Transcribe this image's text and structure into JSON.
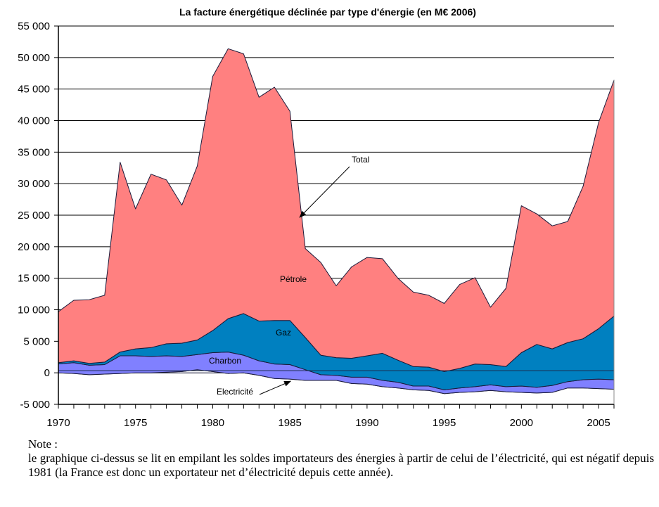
{
  "chart_data": {
    "type": "area",
    "stacked": true,
    "title": "La facture énergétique déclinée par type d'énergie (en M€ 2006)",
    "xlabel": "",
    "ylabel": "",
    "ylim": [
      -5000,
      55000
    ],
    "xlim": [
      1970,
      2006
    ],
    "yticks": [
      -5000,
      0,
      5000,
      10000,
      15000,
      20000,
      25000,
      30000,
      35000,
      40000,
      45000,
      50000,
      55000
    ],
    "ytick_labels": [
      "-5 000",
      "0",
      "5 000",
      "10 000",
      "15 000",
      "20 000",
      "25 000",
      "30 000",
      "35 000",
      "40 000",
      "45 000",
      "50 000",
      "55 000"
    ],
    "xtick_labels": [
      "1970",
      "1975",
      "1980",
      "1985",
      "1990",
      "1995",
      "2000",
      "2005"
    ],
    "xtick_label_years": [
      1970,
      1975,
      1980,
      1985,
      1990,
      1995,
      2000,
      2005
    ],
    "grid": "horizontal",
    "legend": "none (inline labels)",
    "x": [
      1970,
      1971,
      1972,
      1973,
      1974,
      1975,
      1976,
      1977,
      1978,
      1979,
      1980,
      1981,
      1982,
      1983,
      1984,
      1985,
      1986,
      1987,
      1988,
      1989,
      1990,
      1991,
      1992,
      1993,
      1994,
      1995,
      1996,
      1997,
      1998,
      1999,
      2000,
      2001,
      2002,
      2003,
      2004,
      2005,
      2006
    ],
    "cumulative_boundaries_note": "Each series is given as its stacked top boundary (cumulative), stacking starts from Electricité.",
    "series": [
      {
        "name": "Electricité",
        "color": "#ffffff",
        "cumulative_top": [
          0,
          -100,
          -300,
          -200,
          -100,
          0,
          0,
          100,
          200,
          500,
          200,
          -100,
          0,
          -400,
          -900,
          -1000,
          -1200,
          -1200,
          -1200,
          -1700,
          -1800,
          -2200,
          -2400,
          -2700,
          -2800,
          -3300,
          -3100,
          -3000,
          -2800,
          -3000,
          -3100,
          -3200,
          -3100,
          -2400,
          -2400,
          -2500,
          -2600
        ]
      },
      {
        "name": "Charbon",
        "color": "#8080ff",
        "cumulative_top": [
          1400,
          1600,
          1200,
          1300,
          2700,
          2700,
          2600,
          2700,
          2600,
          2900,
          3200,
          3300,
          2800,
          1900,
          1400,
          1300,
          500,
          -300,
          -400,
          -700,
          -700,
          -1200,
          -1500,
          -2100,
          -2100,
          -2700,
          -2400,
          -2200,
          -1900,
          -2200,
          -2100,
          -2300,
          -2000,
          -1400,
          -1100,
          -1000,
          -1100
        ]
      },
      {
        "name": "Gaz",
        "color": "#0080c0",
        "cumulative_top": [
          1600,
          1900,
          1500,
          1700,
          3300,
          3800,
          4000,
          4600,
          4700,
          5200,
          6700,
          8600,
          9400,
          8200,
          8300,
          8300,
          5600,
          2800,
          2400,
          2300,
          2700,
          3100,
          2000,
          1000,
          900,
          200,
          700,
          1400,
          1300,
          1000,
          3200,
          4500,
          3800,
          4800,
          5400,
          7000,
          9000
        ]
      },
      {
        "name": "Pétrole",
        "color": "#ff8080",
        "cumulative_top": [
          9700,
          11500,
          11600,
          12300,
          33400,
          26000,
          31500,
          30600,
          26600,
          32800,
          47000,
          51400,
          50600,
          43700,
          45300,
          41500,
          19700,
          17500,
          13800,
          16800,
          18300,
          18100,
          15000,
          12800,
          12300,
          11000,
          14000,
          15100,
          10400,
          13400,
          26500,
          25200,
          23300,
          24000,
          29600,
          39700,
          46400
        ]
      }
    ],
    "annotations": [
      {
        "text": "Total",
        "arrow_to_year": 1985.5,
        "arrow_to_value": 25000
      },
      {
        "text": "Pétrole",
        "at_year": 1988.8,
        "at_value": 15000
      },
      {
        "text": "Gaz",
        "at_year": 1984.3,
        "at_value": 6300
      },
      {
        "text": "Charbon",
        "at_year": 1981.3,
        "at_value": 1900
      },
      {
        "text": "Electricité",
        "arrow_to_year": 1985,
        "arrow_to_value": -1000
      }
    ]
  },
  "note": {
    "title": "Note :",
    "body": "le graphique ci-dessus se lit en empilant les soldes importateurs des énergies à partir de celui de l’électricité, qui est négatif depuis 1981 (la France est donc un exportateur net d’électricité depuis cette année)."
  }
}
